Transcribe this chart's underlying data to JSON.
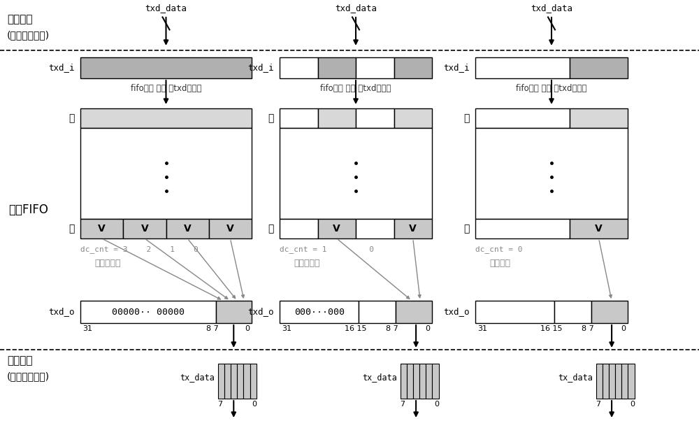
{
  "bg_color": "#ffffff",
  "gray_fill": "#b0b0b0",
  "light_gray_fill": "#c8c8c8",
  "lighter_gray": "#d8d8d8",
  "white": "#ffffff",
  "black": "#000000",
  "dgray": "#888888",
  "top_label": "主机接口",
  "top_label2": "(数据并行写入)",
  "bot_label": "外设接口",
  "bot_label2": "(数据串行输出)",
  "fifo_label": "发送FIFO",
  "txd_data_label": "txd_data",
  "txd_i_label": "txd_i",
  "fifo_note": "fifo未满 用户 写txd寄存器",
  "tail_label": "尾",
  "head_label": "头",
  "txd_o_label": "txd_o",
  "tx_data_label": "tx_data",
  "col1_align": "按字节对齐",
  "col2_align": "按半字对齐",
  "col3_align": "按字对齐"
}
